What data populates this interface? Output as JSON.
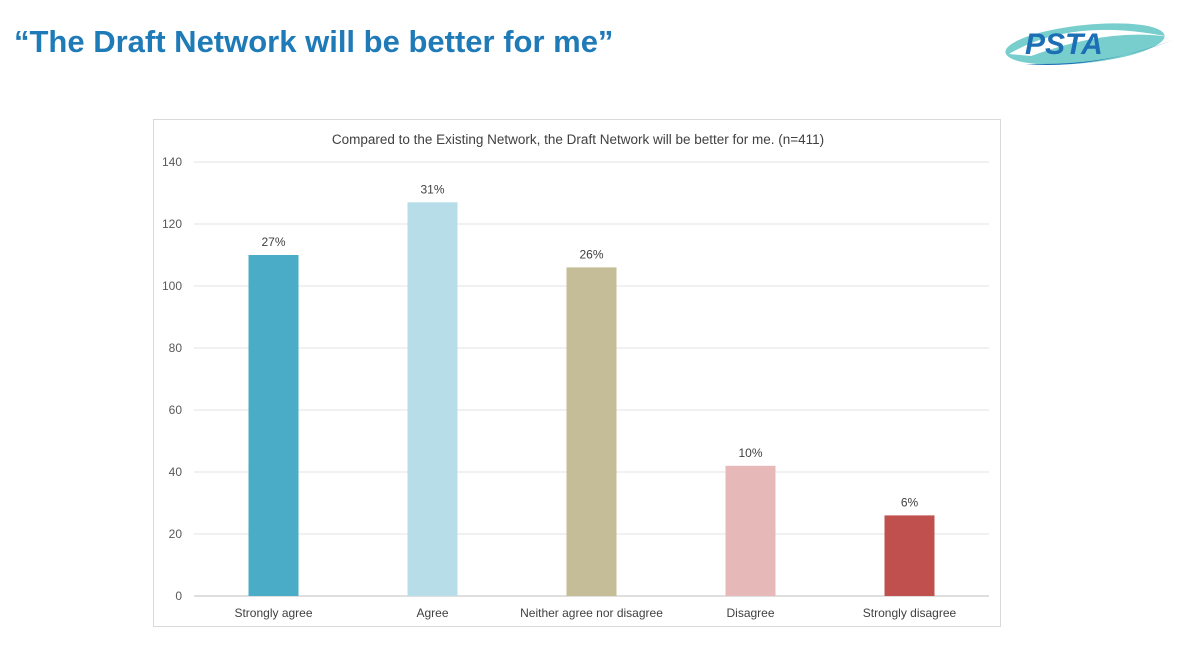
{
  "slide": {
    "title": "“The Draft Network will be better for me”",
    "logo_text": "PSTA"
  },
  "colors": {
    "title": "#1f7ab8",
    "logo_blue": "#1c6fb5",
    "logo_teal": "#5fc5c3"
  },
  "chart_data": {
    "type": "bar",
    "title": "Compared to the Existing Network, the Draft Network will be better for me. (n=411)",
    "xlabel": "",
    "ylabel": "",
    "categories": [
      "Strongly agree",
      "Agree",
      "Neither agree nor disagree",
      "Disagree",
      "Strongly disagree"
    ],
    "values": [
      110,
      127,
      106,
      42,
      26
    ],
    "data_labels": [
      "27%",
      "31%",
      "26%",
      "10%",
      "6%"
    ],
    "colors": [
      "#4aacc6",
      "#b6dde8",
      "#c4bd97",
      "#e6b9b8",
      "#c0504d"
    ],
    "ylim": [
      0,
      140
    ],
    "yticks": [
      0,
      20,
      40,
      60,
      80,
      100,
      120,
      140
    ],
    "grid": true,
    "legend": "none"
  }
}
